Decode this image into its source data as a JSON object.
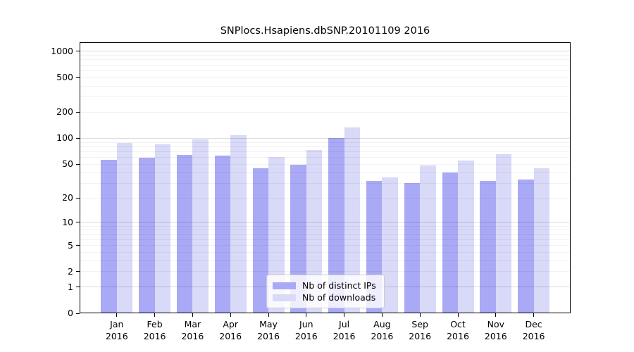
{
  "chart_data": {
    "type": "bar",
    "title": "SNPlocs.Hsapiens.dbSNP.20101109 2016",
    "y_scale": "log10(1+x)",
    "categories": [
      "Jan",
      "Feb",
      "Mar",
      "Apr",
      "May",
      "Jun",
      "Jul",
      "Aug",
      "Sep",
      "Oct",
      "Nov",
      "Dec"
    ],
    "x_year_label": "2016",
    "series": [
      {
        "name": "Nb of distinct IPs",
        "color": "#a9a9f6",
        "values": [
          56,
          60,
          64,
          63,
          45,
          49,
          100,
          32,
          30,
          40,
          32,
          33
        ]
      },
      {
        "name": "Nb of downloads",
        "color": "#d9d9f8",
        "values": [
          88,
          85,
          98,
          108,
          61,
          73,
          134,
          35,
          48,
          55,
          66,
          45
        ]
      }
    ],
    "y_ticks": [
      0,
      1,
      2,
      5,
      10,
      20,
      50,
      100,
      200,
      500,
      1000
    ],
    "ylim": [
      0,
      1270
    ],
    "grid": true,
    "grid_major": [
      1,
      10,
      100,
      1000
    ],
    "legend_position": "bottom-center",
    "xlabel": "",
    "ylabel": ""
  }
}
